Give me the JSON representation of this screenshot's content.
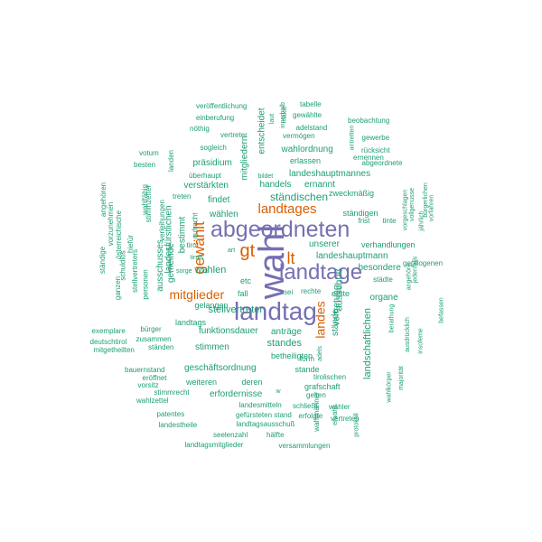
{
  "colors": {
    "large": "#7570b3",
    "medium": "#d95f02",
    "small": "#1b9e77"
  },
  "words": [
    {
      "text": "wahl",
      "tier": "large",
      "rot": true
    },
    {
      "text": "landtag",
      "tier": "large"
    },
    {
      "text": "abgeordneten",
      "tier": "large"
    },
    {
      "text": "landtage",
      "tier": "large"
    },
    {
      "text": "gewählt",
      "tier": "medium",
      "rot": true
    },
    {
      "text": "gt",
      "tier": "medium"
    },
    {
      "text": "lt",
      "tier": "medium"
    },
    {
      "text": "landtages",
      "tier": "medium"
    },
    {
      "text": "mitglieder",
      "tier": "medium"
    },
    {
      "text": "landes",
      "tier": "medium",
      "rot": true
    },
    {
      "text": "veröffentlichung",
      "tier": "small"
    },
    {
      "text": "einberufung",
      "tier": "small"
    },
    {
      "text": "nöthig",
      "tier": "small"
    },
    {
      "text": "vertreter",
      "tier": "small"
    },
    {
      "text": "sogleich",
      "tier": "small"
    },
    {
      "text": "votum",
      "tier": "small"
    },
    {
      "text": "besten",
      "tier": "small"
    },
    {
      "text": "überhaupt",
      "tier": "small"
    },
    {
      "text": "präsidium",
      "tier": "small"
    },
    {
      "text": "verstärkten",
      "tier": "small"
    },
    {
      "text": "treten",
      "tier": "small"
    },
    {
      "text": "findet",
      "tier": "small"
    },
    {
      "text": "wählen",
      "tier": "small"
    },
    {
      "text": "bestimmt",
      "tier": "small",
      "rot": true
    },
    {
      "text": "tirol",
      "tier": "small"
    },
    {
      "text": "tirols",
      "tier": "small"
    },
    {
      "text": "wahlen",
      "tier": "small"
    },
    {
      "text": "fall",
      "tier": "small"
    },
    {
      "text": "etc",
      "tier": "small"
    },
    {
      "text": "gelangen",
      "tier": "small"
    },
    {
      "text": "landtags",
      "tier": "small"
    },
    {
      "text": "stellvertreter",
      "tier": "small"
    },
    {
      "text": "funktionsdauer",
      "tier": "small"
    },
    {
      "text": "stimmen",
      "tier": "small"
    },
    {
      "text": "ständen",
      "tier": "small"
    },
    {
      "text": "geschäftsordnung",
      "tier": "small"
    },
    {
      "text": "bauernstand",
      "tier": "small"
    },
    {
      "text": "eröffnet",
      "tier": "small"
    },
    {
      "text": "vorsitz",
      "tier": "small"
    },
    {
      "text": "stimmrecht",
      "tier": "small"
    },
    {
      "text": "wahlzettel",
      "tier": "small"
    },
    {
      "text": "weiteren",
      "tier": "small"
    },
    {
      "text": "erfordernisse",
      "tier": "small"
    },
    {
      "text": "deren",
      "tier": "small"
    },
    {
      "text": "landesmitteln",
      "tier": "small"
    },
    {
      "text": "gefürsteten stand",
      "tier": "small"
    },
    {
      "text": "landtagsausschuß",
      "tier": "small"
    },
    {
      "text": "patentes",
      "tier": "small"
    },
    {
      "text": "landestheile",
      "tier": "small"
    },
    {
      "text": "seelenzahl",
      "tier": "small"
    },
    {
      "text": "hälfte",
      "tier": "small"
    },
    {
      "text": "landtagsmitglieder",
      "tier": "small"
    },
    {
      "text": "versammlungen",
      "tier": "small"
    },
    {
      "text": "tabelle",
      "tier": "small"
    },
    {
      "text": "gewählte",
      "tier": "small"
    },
    {
      "text": "adelstand",
      "tier": "small"
    },
    {
      "text": "vermögen",
      "tier": "small"
    },
    {
      "text": "beobachtung",
      "tier": "small"
    },
    {
      "text": "gewerbe",
      "tier": "small"
    },
    {
      "text": "rücksicht",
      "tier": "small"
    },
    {
      "text": "abgeordnete",
      "tier": "small"
    },
    {
      "text": "ernennen",
      "tier": "small"
    },
    {
      "text": "wahlordnung",
      "tier": "small"
    },
    {
      "text": "erlassen",
      "tier": "small"
    },
    {
      "text": "landeshauptmannes",
      "tier": "small"
    },
    {
      "text": "handels",
      "tier": "small"
    },
    {
      "text": "ernannt",
      "tier": "small"
    },
    {
      "text": "ständischen",
      "tier": "small"
    },
    {
      "text": "zweckmäßig",
      "tier": "small"
    },
    {
      "text": "ständigen",
      "tier": "small"
    },
    {
      "text": "bildet",
      "tier": "small"
    },
    {
      "text": "entscheidet",
      "tier": "small",
      "rot": true
    },
    {
      "text": "mitgliedern",
      "tier": "small",
      "rot": true
    },
    {
      "text": "unserer",
      "tier": "small"
    },
    {
      "text": "verhandlungen",
      "tier": "small"
    },
    {
      "text": "landeshauptmann",
      "tier": "small"
    },
    {
      "text": "besondere",
      "tier": "small"
    },
    {
      "text": "frist",
      "tier": "small"
    },
    {
      "text": "tinte",
      "tier": "small"
    },
    {
      "text": "städte",
      "tier": "small"
    },
    {
      "text": "gepflogenen",
      "tier": "small"
    },
    {
      "text": "organe",
      "tier": "small"
    },
    {
      "text": "erste",
      "tier": "small"
    },
    {
      "text": "rechte",
      "tier": "small"
    },
    {
      "text": "sei",
      "tier": "small"
    },
    {
      "text": "anträge",
      "tier": "small"
    },
    {
      "text": "standes",
      "tier": "small"
    },
    {
      "text": "stände",
      "tier": "small",
      "rot": true
    },
    {
      "text": "vertretung",
      "tier": "small",
      "rot": true
    },
    {
      "text": "ausschuß",
      "tier": "small",
      "rot": true
    },
    {
      "text": "landschaftlichen",
      "tier": "small",
      "rot": true
    },
    {
      "text": "form",
      "tier": "small"
    },
    {
      "text": "stande",
      "tier": "small"
    },
    {
      "text": "tirolischen",
      "tier": "small"
    },
    {
      "text": "grafschaft",
      "tier": "small"
    },
    {
      "text": "gelten",
      "tier": "small"
    },
    {
      "text": "schließt",
      "tier": "small"
    },
    {
      "text": "erfolgte",
      "tier": "small"
    },
    {
      "text": "wähler",
      "tier": "small"
    },
    {
      "text": "vertreten",
      "tier": "small"
    },
    {
      "text": "landesfürstlichen",
      "tier": "small",
      "rot": true
    },
    {
      "text": "ausschusses",
      "tier": "small",
      "rot": true
    },
    {
      "text": "gemeinde",
      "tier": "small",
      "rot": true
    },
    {
      "text": "bürger",
      "tier": "small"
    },
    {
      "text": "zusammen",
      "tier": "small"
    },
    {
      "text": "exemplare",
      "tier": "small"
    },
    {
      "text": "deutschtirol",
      "tier": "small"
    },
    {
      "text": "mitgetheilten",
      "tier": "small"
    },
    {
      "text": "betheiligten",
      "tier": "small"
    },
    {
      "text": "wahlmänner",
      "tier": "small",
      "rot": true
    },
    {
      "text": "erwählt",
      "tier": "small",
      "rot": true
    },
    {
      "text": "protokoll",
      "tier": "small",
      "rot": true
    },
    {
      "text": "wahlkörper",
      "tier": "small",
      "rot": true
    },
    {
      "text": "majorität",
      "tier": "small",
      "rot": true
    },
    {
      "text": "ausdrücklich",
      "tier": "small",
      "rot": true
    },
    {
      "text": "insofeme",
      "tier": "small",
      "rot": true
    },
    {
      "text": "befassen",
      "tier": "small",
      "rot": true
    },
    {
      "text": "berathung",
      "tier": "small",
      "rot": true
    },
    {
      "text": "angehöre",
      "tier": "small",
      "rot": true
    },
    {
      "text": "jedenfalls",
      "tier": "small",
      "rot": true
    },
    {
      "text": "jährlich",
      "tier": "small",
      "rot": true
    },
    {
      "text": "bürgerlichen",
      "tier": "small",
      "rot": true
    },
    {
      "text": "vorfahren",
      "tier": "small",
      "rot": true
    },
    {
      "text": "vollgenusse",
      "tier": "small",
      "rot": true
    },
    {
      "text": "vorgeschlagen",
      "tier": "small",
      "rot": true
    },
    {
      "text": "antretten",
      "tier": "small",
      "rot": true
    },
    {
      "text": "innerhalb",
      "tier": "small",
      "rot": true
    },
    {
      "text": "laut",
      "tier": "small",
      "rot": true
    },
    {
      "text": "mäkte",
      "tier": "small",
      "rot": true
    },
    {
      "text": "landen",
      "tier": "small",
      "rot": true
    },
    {
      "text": "stimmzettel",
      "tier": "small",
      "rot": true
    },
    {
      "text": "angehören",
      "tier": "small",
      "rot": true
    },
    {
      "text": "wahlfähig",
      "tier": "small",
      "rot": true
    },
    {
      "text": "vorzunehmen",
      "tier": "small",
      "rot": true
    },
    {
      "text": "österreichische",
      "tier": "small",
      "rot": true
    },
    {
      "text": "ständige",
      "tier": "small",
      "rot": true
    },
    {
      "text": "schuldlos",
      "tier": "small",
      "rot": true
    },
    {
      "text": "hiefür",
      "tier": "small",
      "rot": true
    },
    {
      "text": "stellvertreters",
      "tier": "small",
      "rot": true
    },
    {
      "text": "ganzen",
      "tier": "small",
      "rot": true
    },
    {
      "text": "personen",
      "tier": "small",
      "rot": true
    },
    {
      "text": "verleihungen",
      "tier": "small",
      "rot": true
    },
    {
      "text": "aufrecht",
      "tier": "small",
      "rot": true
    },
    {
      "text": "sorge",
      "tier": "small"
    },
    {
      "text": "art",
      "tier": "small"
    },
    {
      "text": "adels",
      "tier": "small",
      "rot": true
    },
    {
      "text": "w",
      "tier": "small"
    },
    {
      "text": "mal",
      "tier": "small",
      "rot": true
    },
    {
      "text": "nahe",
      "tier": "small",
      "rot": true
    }
  ]
}
